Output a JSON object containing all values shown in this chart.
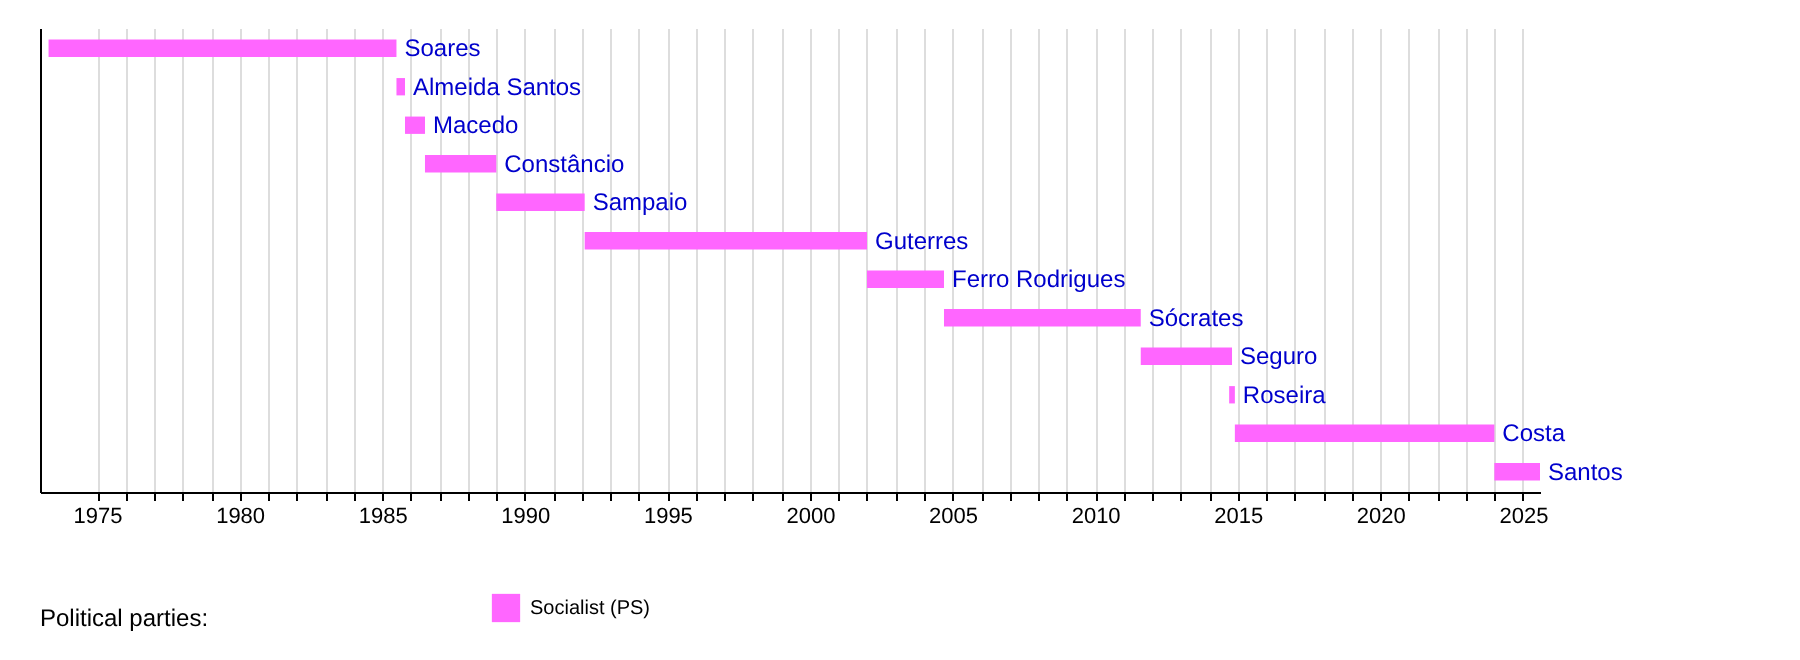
{
  "chart_data": {
    "type": "bar",
    "orientation": "horizontal",
    "legend_title": "Political parties:",
    "legend": "bottom",
    "grid": "x",
    "tick_labels": "x",
    "categories": [
      "Soares",
      "Almeida Santos",
      "Macedo",
      "Constâncio",
      "Sampaio",
      "Guterres",
      "Ferro Rodrigues",
      "Sócrates",
      "Seguro",
      "Roseira",
      "Costa",
      "Santos"
    ],
    "series": [
      {
        "name": "Socialist (PS)",
        "color": "#ff66ff",
        "base": [
          1973.3,
          1985.5,
          1985.8,
          1986.5,
          1989.0,
          1992.1,
          2002.0,
          2004.7,
          2011.6,
          2014.7,
          2014.9,
          2024.0
        ],
        "values": [
          12.2,
          0.3,
          0.7,
          2.5,
          3.1,
          9.9,
          2.7,
          6.9,
          3.2,
          0.2,
          9.1,
          1.6
        ]
      }
    ],
    "xlim": [
      1973,
      2025.6
    ],
    "xticks": [
      1975,
      {
        "value": 1976,
        "label": null
      },
      {
        "value": 1977,
        "label": null
      },
      {
        "value": 1978,
        "label": null
      },
      {
        "value": 1979,
        "label": null
      },
      1980,
      {
        "value": 1981,
        "label": null
      },
      {
        "value": 1982,
        "label": null
      },
      {
        "value": 1983,
        "label": null
      },
      {
        "value": 1984,
        "label": null
      },
      1985,
      {
        "value": 1986,
        "label": null
      },
      {
        "value": 1987,
        "label": null
      },
      {
        "value": 1988,
        "label": null
      },
      {
        "value": 1989,
        "label": null
      },
      1990,
      {
        "value": 1991,
        "label": null
      },
      {
        "value": 1992,
        "label": null
      },
      {
        "value": 1993,
        "label": null
      },
      {
        "value": 1994,
        "label": null
      },
      1995,
      {
        "value": 1996,
        "label": null
      },
      {
        "value": 1997,
        "label": null
      },
      {
        "value": 1998,
        "label": null
      },
      {
        "value": 1999,
        "label": null
      },
      2000,
      {
        "value": 2001,
        "label": null
      },
      {
        "value": 2002,
        "label": null
      },
      {
        "value": 2003,
        "label": null
      },
      {
        "value": 2004,
        "label": null
      },
      2005,
      {
        "value": 2006,
        "label": null
      },
      {
        "value": 2007,
        "label": null
      },
      {
        "value": 2008,
        "label": null
      },
      {
        "value": 2009,
        "label": null
      },
      2010,
      {
        "value": 2011,
        "label": null
      },
      {
        "value": 2012,
        "label": null
      },
      {
        "value": 2013,
        "label": null
      },
      {
        "value": 2014,
        "label": null
      },
      2015,
      {
        "value": 2016,
        "label": null
      },
      {
        "value": 2017,
        "label": null
      },
      {
        "value": 2018,
        "label": null
      },
      {
        "value": 2019,
        "label": null
      },
      2020,
      {
        "value": 2021,
        "label": null
      },
      {
        "value": 2022,
        "label": null
      },
      {
        "value": 2023,
        "label": null
      },
      {
        "value": 2024,
        "label": null
      },
      2025
    ]
  }
}
